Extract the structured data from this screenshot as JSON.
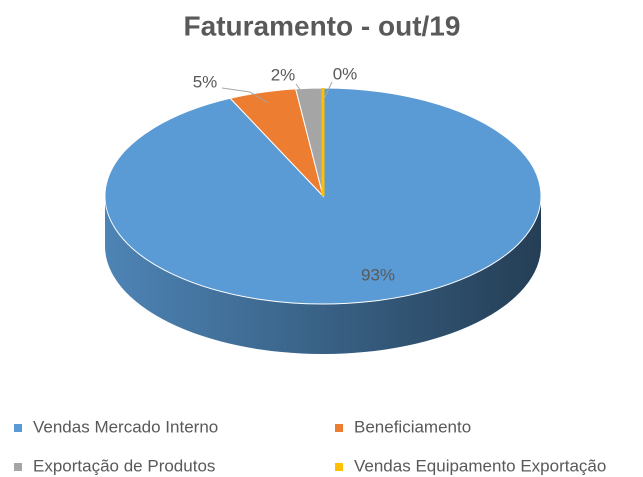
{
  "chart_data": {
    "type": "pie",
    "title": "Faturamento - out/19",
    "categories": [
      "Vendas Mercado Interno",
      "Beneficiamento",
      "Exportação de Produtos",
      "Vendas Equipamento Exportação"
    ],
    "values": [
      93,
      5,
      2,
      0
    ],
    "value_labels": [
      "93%",
      "5%",
      "2%",
      "0%"
    ],
    "colors": [
      "#5b9bd5",
      "#ed7d31",
      "#a5a5a5",
      "#ffc000"
    ]
  }
}
